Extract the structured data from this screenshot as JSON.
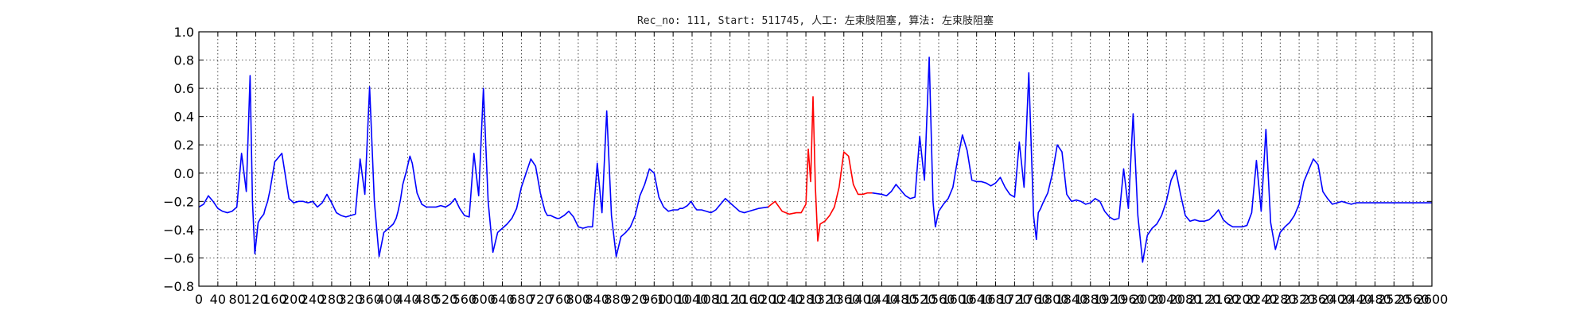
{
  "chart_data": {
    "type": "line",
    "title": "Rec_no: 111, Start: 511745, 人工: 左束肢阻塞, 算法: 左束肢阻塞",
    "xlabel": "",
    "ylabel": "",
    "xlim": [
      0,
      2600
    ],
    "ylim": [
      -0.8,
      1.0
    ],
    "grid": true,
    "x_ticks": [
      0,
      40,
      80,
      120,
      160,
      200,
      240,
      280,
      320,
      360,
      400,
      440,
      480,
      520,
      560,
      600,
      640,
      680,
      720,
      760,
      800,
      840,
      880,
      920,
      960,
      1000,
      1040,
      1080,
      1120,
      1160,
      1200,
      1240,
      1280,
      1320,
      1360,
      1400,
      1440,
      1480,
      1520,
      1560,
      1600,
      1640,
      1680,
      1720,
      1760,
      1800,
      1840,
      1880,
      1920,
      1960,
      2000,
      2040,
      2080,
      2120,
      2160,
      2200,
      2240,
      2280,
      2320,
      2360,
      2400,
      2440,
      2480,
      2520,
      2560,
      2600
    ],
    "y_ticks": [
      -0.8,
      -0.6,
      -0.4,
      -0.2,
      0.0,
      0.2,
      0.4,
      0.6,
      0.8,
      1.0
    ],
    "y_tick_labels": [
      "−0.8",
      "−0.6",
      "−0.4",
      "−0.2",
      "0.0",
      "0.2",
      "0.4",
      "0.6",
      "0.8",
      "1.0"
    ],
    "x_tick_labels": [
      "0",
      "40",
      "80",
      "120",
      "160",
      "200",
      "240",
      "280",
      "320",
      "360",
      "400",
      "440",
      "480",
      "520",
      "560",
      "600",
      "640",
      "680",
      "720",
      "760",
      "800",
      "840",
      "880",
      "920",
      "960",
      "1000",
      "1040",
      "1080",
      "1120",
      "1160",
      "1200",
      "1240",
      "1280",
      "1320",
      "1360",
      "1400",
      "1440",
      "1480",
      "1520",
      "1560",
      "1600",
      "1640",
      "1680",
      "1720",
      "1760",
      "1800",
      "1840",
      "1880",
      "1920",
      "1960",
      "2000",
      "2040",
      "2080",
      "2120",
      "2160",
      "2200",
      "2240",
      "2280",
      "2320",
      "2360",
      "2400",
      "2440",
      "2480",
      "2520",
      "2560",
      "2600"
    ],
    "series": [
      {
        "color": "#0000ff",
        "x": [
          0,
          10,
          20,
          30,
          40,
          50,
          60,
          70,
          80,
          90,
          100,
          108,
          113,
          118,
          125,
          130,
          137,
          140,
          145,
          150,
          160,
          175,
          190,
          200,
          210,
          220,
          230,
          240,
          250,
          260,
          270,
          280,
          290,
          300,
          310,
          320,
          330,
          340,
          350,
          360,
          370,
          380,
          390,
          400,
          410,
          416,
          420,
          425,
          430,
          438,
          445,
          450,
          460,
          470,
          480,
          490,
          500,
          510,
          520,
          530,
          540,
          550,
          560,
          570,
          580,
          590,
          600,
          610,
          620,
          630,
          640,
          650,
          660,
          670,
          680,
          690,
          700,
          710,
          720,
          726,
          730,
          735,
          742,
          748,
          755,
          760,
          770,
          780,
          790,
          800,
          810,
          820,
          830,
          840,
          850,
          860,
          870,
          880,
          890,
          900,
          910,
          920,
          930,
          940,
          950,
          960,
          970,
          980,
          990,
          1000,
          1010,
          1014,
          1020,
          1025,
          1030,
          1038,
          1045,
          1050,
          1060,
          1070,
          1080,
          1090,
          1100,
          1110,
          1120,
          1130,
          1140,
          1150,
          1160,
          1170,
          1180,
          1200
        ],
        "y": [
          -0.24,
          -0.22,
          -0.16,
          -0.2,
          -0.25,
          -0.27,
          -0.28,
          -0.27,
          -0.24,
          0.14,
          -0.13,
          0.69,
          -0.2,
          -0.57,
          -0.35,
          -0.32,
          -0.29,
          -0.25,
          -0.2,
          -0.12,
          0.08,
          0.14,
          -0.18,
          -0.21,
          -0.2,
          -0.2,
          -0.21,
          -0.2,
          -0.24,
          -0.21,
          -0.15,
          -0.21,
          -0.28,
          -0.3,
          -0.31,
          -0.3,
          -0.29,
          0.1,
          -0.15,
          0.61,
          -0.2,
          -0.59,
          -0.42,
          -0.39,
          -0.36,
          -0.32,
          -0.27,
          -0.19,
          -0.08,
          0.02,
          0.12,
          0.07,
          -0.14,
          -0.22,
          -0.24,
          -0.24,
          -0.24,
          -0.23,
          -0.24,
          -0.22,
          -0.18,
          -0.25,
          -0.3,
          -0.31,
          0.14,
          -0.16,
          0.6,
          -0.2,
          -0.56,
          -0.42,
          -0.39,
          -0.36,
          -0.32,
          -0.25,
          -0.1,
          0.0,
          0.1,
          0.05,
          -0.14,
          -0.22,
          -0.27,
          -0.3,
          -0.3,
          -0.31,
          -0.32,
          -0.32,
          -0.3,
          -0.27,
          -0.31,
          -0.38,
          -0.39,
          -0.38,
          -0.38,
          0.07,
          -0.28,
          0.44,
          -0.3,
          -0.59,
          -0.45,
          -0.42,
          -0.38,
          -0.3,
          -0.16,
          -0.08,
          0.03,
          0.0,
          -0.17,
          -0.24,
          -0.27,
          -0.26,
          -0.26,
          -0.25,
          -0.25,
          -0.24,
          -0.23,
          -0.2,
          -0.24,
          -0.26,
          -0.26,
          -0.27,
          -0.28,
          -0.26,
          -0.22,
          -0.18,
          -0.21,
          -0.24,
          -0.27,
          -0.28,
          -0.27,
          -0.26,
          -0.25,
          -0.24
        ]
      },
      {
        "color": "#ff0000",
        "x": [
          1200,
          1215,
          1230,
          1245,
          1260,
          1270,
          1280,
          1285,
          1290,
          1295,
          1300,
          1305,
          1310,
          1320,
          1330,
          1340,
          1350,
          1360,
          1370,
          1380,
          1390,
          1400,
          1410,
          1420
        ],
        "y": [
          -0.24,
          -0.2,
          -0.27,
          -0.29,
          -0.28,
          -0.28,
          -0.22,
          0.17,
          -0.06,
          0.54,
          -0.1,
          -0.48,
          -0.36,
          -0.34,
          -0.3,
          -0.24,
          -0.1,
          0.15,
          0.12,
          -0.08,
          -0.15,
          -0.15,
          -0.14,
          -0.14
        ]
      },
      {
        "color": "#0000ff",
        "x": [
          1420,
          1440,
          1450,
          1460,
          1470,
          1480,
          1490,
          1500,
          1510,
          1520,
          1530,
          1540,
          1548,
          1553,
          1560,
          1570,
          1580,
          1590,
          1600,
          1610,
          1620,
          1630,
          1640,
          1650,
          1660,
          1670,
          1680,
          1690,
          1700,
          1710,
          1720,
          1730,
          1740,
          1750,
          1760,
          1766,
          1770,
          1775,
          1780,
          1790,
          1800,
          1810,
          1820,
          1830,
          1840,
          1850,
          1860,
          1870,
          1880,
          1890,
          1900,
          1910,
          1920,
          1930,
          1940,
          1950,
          1960,
          1970,
          1980,
          1990,
          2000,
          2010,
          2020,
          2030,
          2040,
          2050,
          2060,
          2070,
          2080,
          2090,
          2100,
          2110,
          2120,
          2130,
          2140,
          2150,
          2160,
          2170,
          2180,
          2190,
          2200,
          2210,
          2220,
          2230,
          2240,
          2250,
          2260,
          2270,
          2280,
          2290,
          2300,
          2310,
          2320,
          2330,
          2340,
          2350,
          2360,
          2370,
          2380,
          2390,
          2400,
          2410,
          2420,
          2430,
          2440,
          2450,
          2460,
          2470,
          2480,
          2490,
          2500,
          2510,
          2520,
          2530,
          2540,
          2550,
          2560,
          2570,
          2580,
          2600
        ],
        "y": [
          -0.14,
          -0.15,
          -0.16,
          -0.13,
          -0.08,
          -0.12,
          -0.16,
          -0.18,
          -0.17,
          0.26,
          -0.05,
          0.82,
          -0.2,
          -0.38,
          -0.27,
          -0.22,
          -0.18,
          -0.1,
          0.1,
          0.27,
          0.16,
          -0.05,
          -0.06,
          -0.06,
          -0.07,
          -0.09,
          -0.07,
          -0.03,
          -0.1,
          -0.15,
          -0.17,
          0.22,
          -0.1,
          0.71,
          -0.3,
          -0.47,
          -0.28,
          -0.25,
          -0.21,
          -0.14,
          0.0,
          0.2,
          0.15,
          -0.15,
          -0.2,
          -0.19,
          -0.2,
          -0.22,
          -0.21,
          -0.18,
          -0.2,
          -0.27,
          -0.31,
          -0.33,
          -0.32,
          0.03,
          -0.25,
          0.42,
          -0.3,
          -0.63,
          -0.44,
          -0.39,
          -0.36,
          -0.3,
          -0.2,
          -0.05,
          0.02,
          -0.15,
          -0.3,
          -0.34,
          -0.33,
          -0.34,
          -0.34,
          -0.33,
          -0.3,
          -0.26,
          -0.33,
          -0.36,
          -0.38,
          -0.38,
          -0.38,
          -0.37,
          -0.28,
          0.09,
          -0.27,
          0.31,
          -0.35,
          -0.54,
          -0.42,
          -0.38,
          -0.35,
          -0.3,
          -0.22,
          -0.06,
          0.02,
          0.1,
          0.06,
          -0.13,
          -0.18,
          -0.22,
          -0.21,
          -0.2,
          -0.21,
          -0.22,
          -0.21,
          -0.21,
          -0.21,
          -0.21,
          -0.21,
          -0.21,
          -0.21,
          -0.21,
          -0.21,
          -0.21,
          -0.21,
          -0.21,
          -0.21,
          -0.21,
          -0.21,
          -0.21
        ]
      }
    ]
  }
}
